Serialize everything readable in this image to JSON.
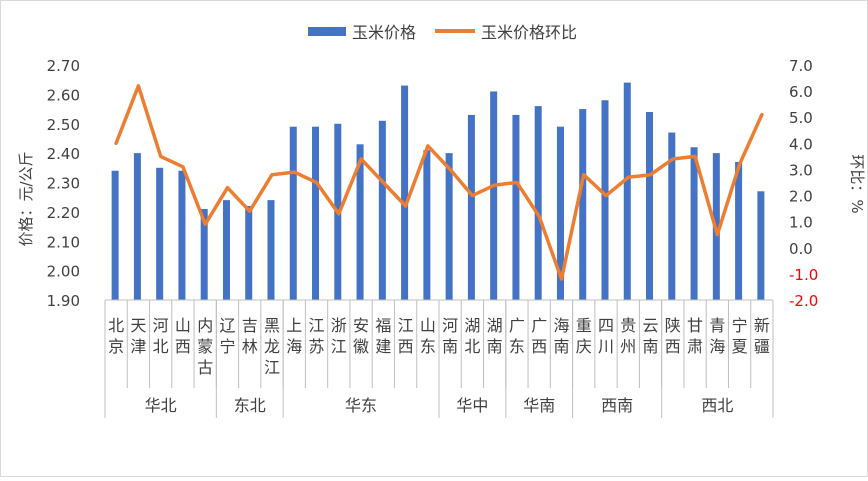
{
  "chart_data": {
    "type": "bar+line",
    "title": "",
    "legend": {
      "position": "top",
      "items": [
        {
          "name": "玉米价格",
          "color": "#4472C4",
          "kind": "bar"
        },
        {
          "name": "玉米价格环比",
          "color": "#ED7D31",
          "kind": "line"
        }
      ]
    },
    "ylabel_left": "价格：元/公斤",
    "ylabel_right": "环比：%",
    "ylim_left": [
      1.9,
      2.7
    ],
    "ylim_right": [
      -2.0,
      7.0
    ],
    "yticks_left": [
      "1.90",
      "2.00",
      "2.10",
      "2.20",
      "2.30",
      "2.40",
      "2.50",
      "2.60",
      "2.70"
    ],
    "yticks_right": [
      "-2.0",
      "-1.0",
      "0.0",
      "1.0",
      "2.0",
      "3.0",
      "4.0",
      "5.0",
      "6.0",
      "7.0"
    ],
    "negative_tick_color": "#FF0000",
    "grid": false,
    "categories": [
      "北京",
      "天津",
      "河北",
      "山西",
      "内蒙古",
      "辽宁",
      "吉林",
      "黑龙江",
      "上海",
      "江苏",
      "浙江",
      "安徽",
      "福建",
      "江西",
      "山东",
      "河南",
      "湖北",
      "湖南",
      "广东",
      "广西",
      "海南",
      "重庆",
      "四川",
      "贵州",
      "云南",
      "陕西",
      "甘肃",
      "青海",
      "宁夏",
      "新疆"
    ],
    "groups": [
      {
        "name": "华北",
        "count": 5
      },
      {
        "name": "东北",
        "count": 3
      },
      {
        "name": "华东",
        "count": 7
      },
      {
        "name": "华中",
        "count": 3
      },
      {
        "name": "华南",
        "count": 3
      },
      {
        "name": "西南",
        "count": 4
      },
      {
        "name": "西北",
        "count": 5
      }
    ],
    "series": [
      {
        "name": "玉米价格",
        "type": "bar",
        "axis": "left",
        "values": [
          2.34,
          2.4,
          2.35,
          2.34,
          2.21,
          2.24,
          2.22,
          2.24,
          2.49,
          2.49,
          2.5,
          2.43,
          2.51,
          2.63,
          2.41,
          2.4,
          2.53,
          2.61,
          2.53,
          2.56,
          2.49,
          2.55,
          2.58,
          2.64,
          2.54,
          2.47,
          2.42,
          2.4,
          2.37,
          2.27
        ]
      },
      {
        "name": "玉米价格环比",
        "type": "line",
        "axis": "right",
        "values": [
          4.0,
          6.2,
          3.5,
          3.1,
          0.9,
          2.3,
          1.4,
          2.8,
          2.9,
          2.5,
          1.3,
          3.4,
          2.5,
          1.6,
          3.9,
          3.0,
          2.0,
          2.4,
          2.5,
          1.2,
          -1.2,
          2.8,
          2.0,
          2.7,
          2.8,
          3.4,
          3.5,
          0.5,
          3.2,
          5.1
        ]
      }
    ]
  }
}
